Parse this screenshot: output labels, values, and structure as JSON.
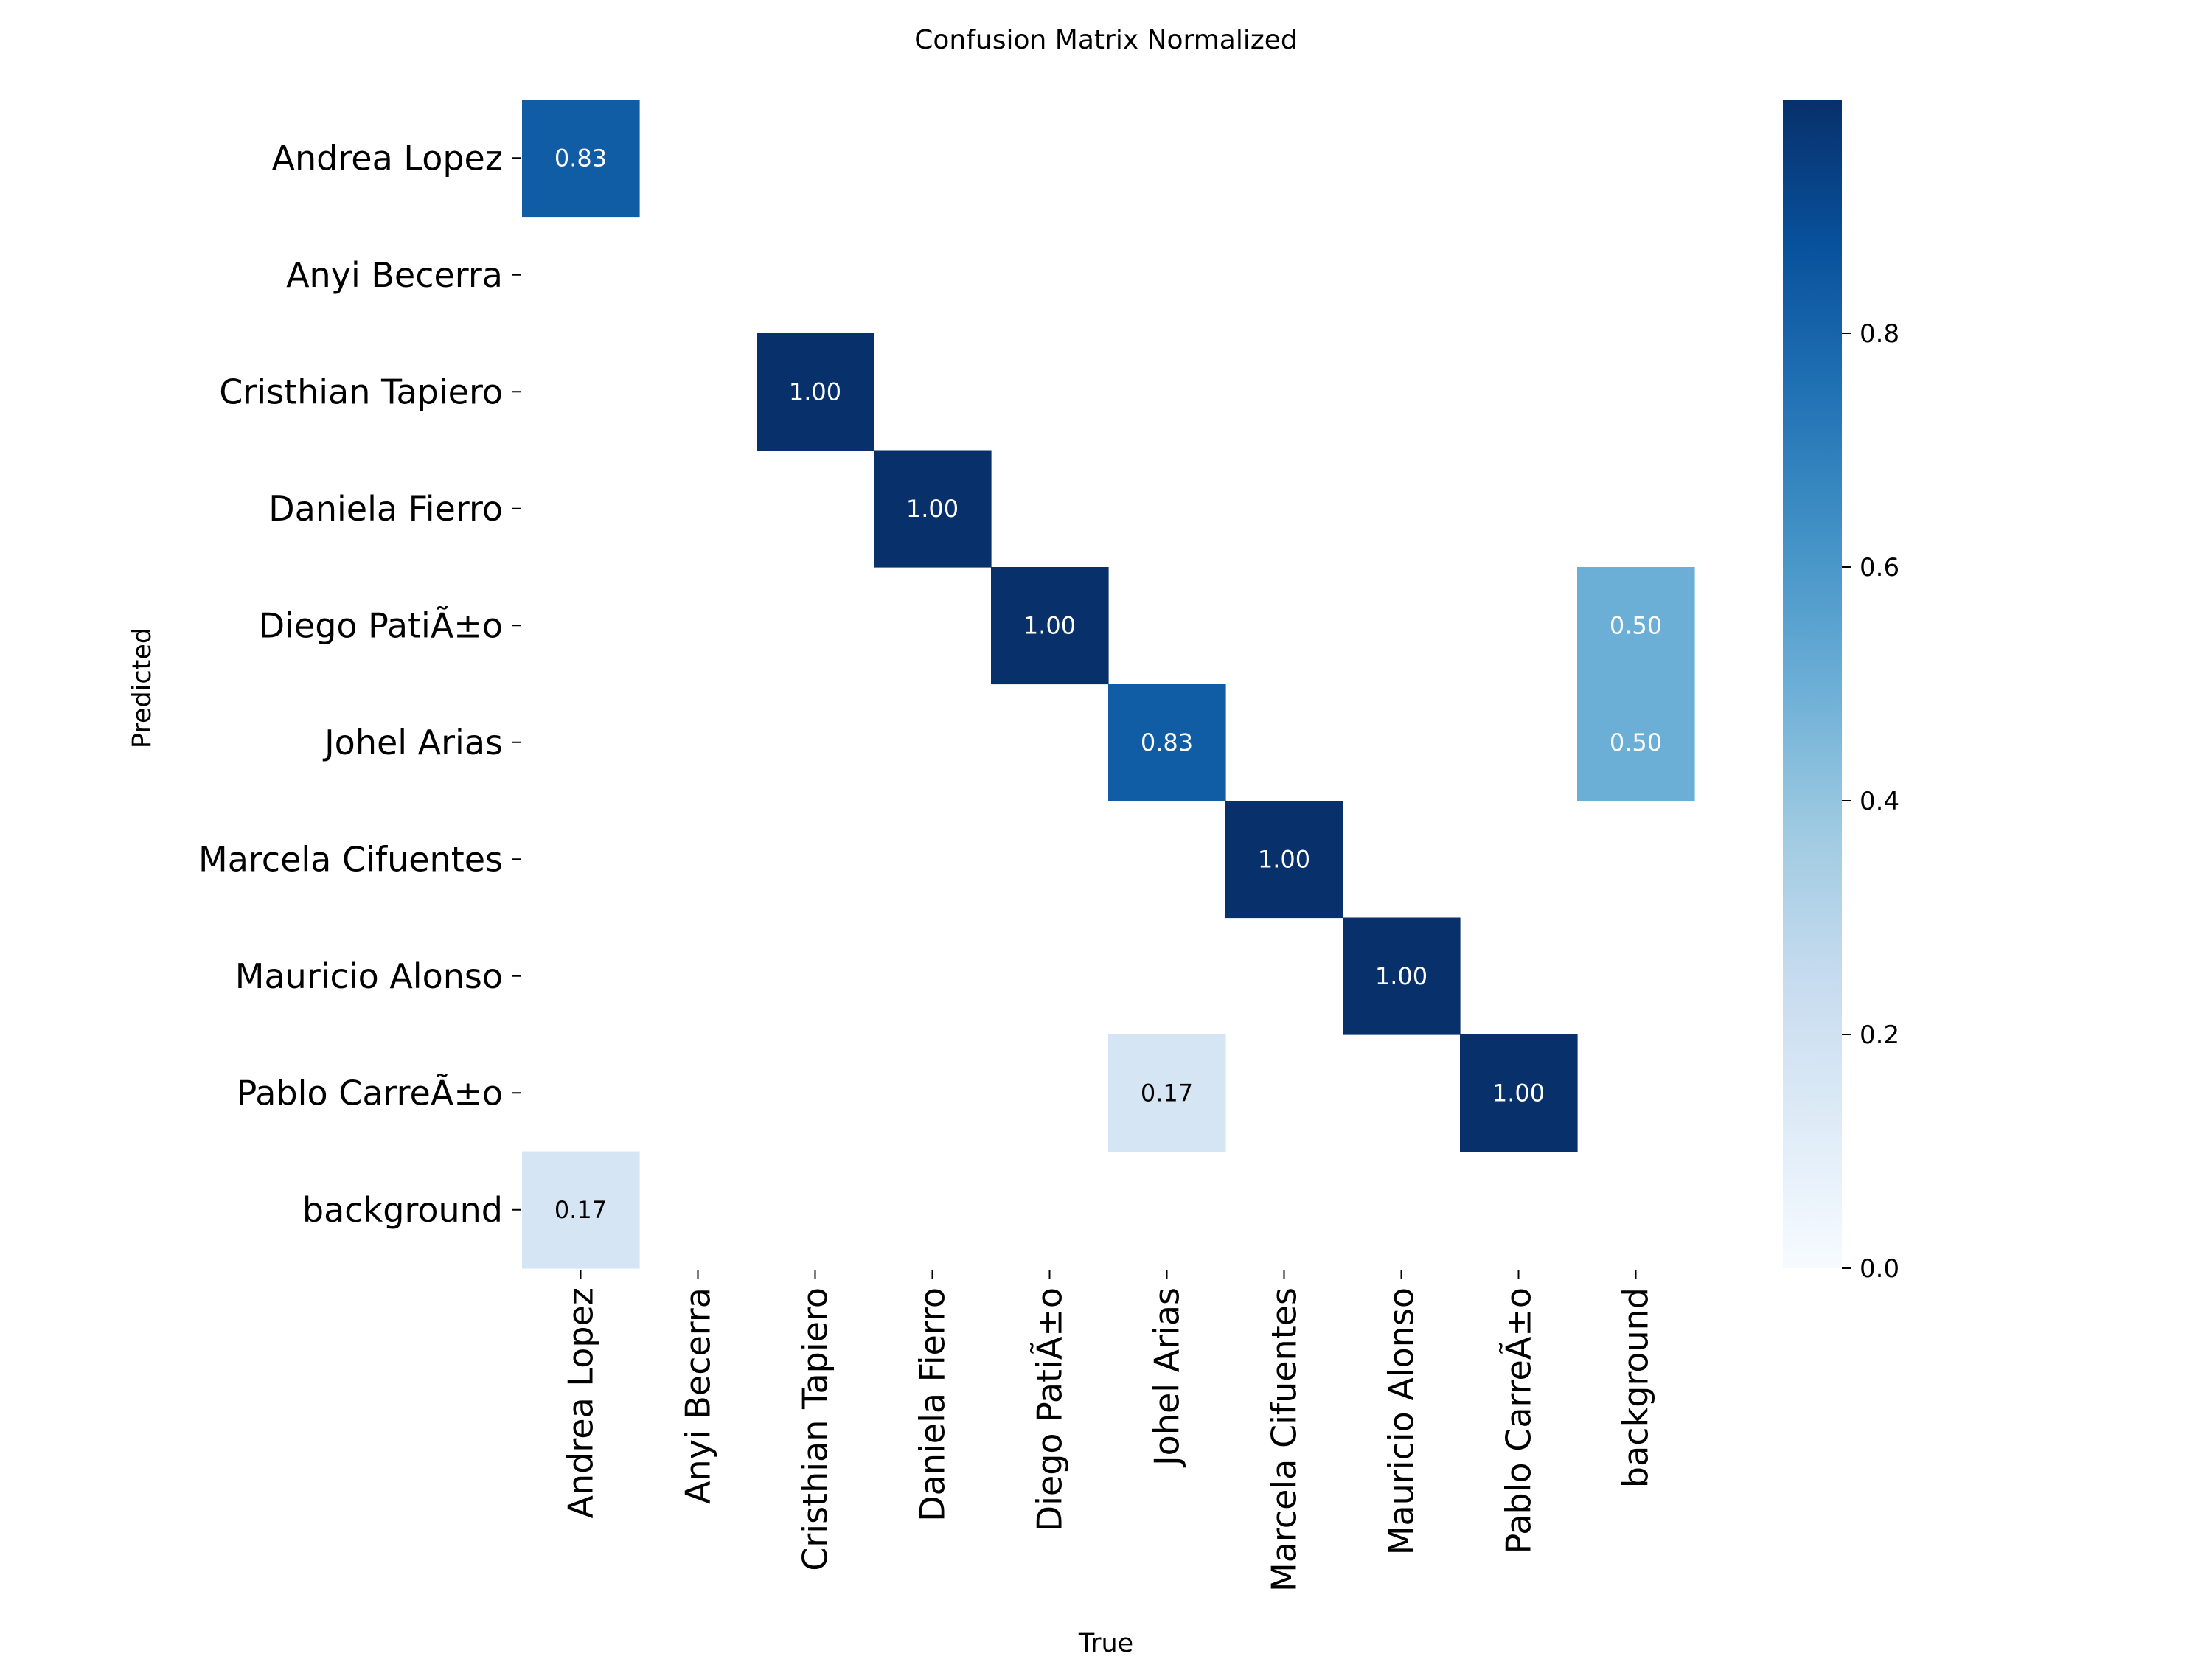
{
  "chart_data": {
    "type": "heatmap",
    "title": "Confusion Matrix Normalized",
    "xlabel": "True",
    "ylabel": "Predicted",
    "x_categories": [
      "Andrea Lopez",
      "Anyi Becerra",
      "Cristhian Tapiero",
      "Daniela Fierro",
      "Diego PatiÃ±o",
      "Johel Arias",
      "Marcela Cifuentes",
      "Mauricio Alonso",
      "Pablo CarreÃ±o",
      "background"
    ],
    "y_categories": [
      "Andrea Lopez",
      "Anyi Becerra",
      "Cristhian Tapiero",
      "Daniela Fierro",
      "Diego PatiÃ±o",
      "Johel Arias",
      "Marcela Cifuentes",
      "Mauricio Alonso",
      "Pablo CarreÃ±o",
      "background"
    ],
    "values": [
      [
        0.83,
        null,
        null,
        null,
        null,
        null,
        null,
        null,
        null,
        null
      ],
      [
        null,
        null,
        null,
        null,
        null,
        null,
        null,
        null,
        null,
        null
      ],
      [
        null,
        null,
        1.0,
        null,
        null,
        null,
        null,
        null,
        null,
        null
      ],
      [
        null,
        null,
        null,
        1.0,
        null,
        null,
        null,
        null,
        null,
        null
      ],
      [
        null,
        null,
        null,
        null,
        1.0,
        null,
        null,
        null,
        null,
        0.5
      ],
      [
        null,
        null,
        null,
        null,
        null,
        0.83,
        null,
        null,
        null,
        0.5
      ],
      [
        null,
        null,
        null,
        null,
        null,
        null,
        1.0,
        null,
        null,
        null
      ],
      [
        null,
        null,
        null,
        null,
        null,
        null,
        null,
        1.0,
        null,
        null
      ],
      [
        null,
        null,
        null,
        null,
        null,
        0.17,
        null,
        null,
        1.0,
        null
      ],
      [
        0.17,
        null,
        null,
        null,
        null,
        null,
        null,
        null,
        null,
        null
      ]
    ],
    "annotations": [
      [
        "0.83",
        "",
        "",
        "",
        "",
        "",
        "",
        "",
        "",
        ""
      ],
      [
        "",
        "",
        "",
        "",
        "",
        "",
        "",
        "",
        "",
        ""
      ],
      [
        "",
        "",
        "1.00",
        "",
        "",
        "",
        "",
        "",
        "",
        ""
      ],
      [
        "",
        "",
        "",
        "1.00",
        "",
        "",
        "",
        "",
        "",
        ""
      ],
      [
        "",
        "",
        "",
        "",
        "1.00",
        "",
        "",
        "",
        "",
        "0.50"
      ],
      [
        "",
        "",
        "",
        "",
        "",
        "0.83",
        "",
        "",
        "",
        "0.50"
      ],
      [
        "",
        "",
        "",
        "",
        "",
        "",
        "1.00",
        "",
        "",
        ""
      ],
      [
        "",
        "",
        "",
        "",
        "",
        "",
        "",
        "1.00",
        "",
        ""
      ],
      [
        "",
        "",
        "",
        "",
        "",
        "0.17",
        "",
        "",
        "1.00",
        ""
      ],
      [
        "0.17",
        "",
        "",
        "",
        "",
        "",
        "",
        "",
        "",
        ""
      ]
    ],
    "colormap": "Blues",
    "colorbar": {
      "min": 0.0,
      "max": 1.0,
      "ticks": [
        0.0,
        0.2,
        0.4,
        0.6,
        0.8
      ],
      "tick_labels": [
        "0.0",
        "0.2",
        "0.4",
        "0.6",
        "0.8"
      ]
    },
    "grid": false,
    "legend": "none"
  }
}
